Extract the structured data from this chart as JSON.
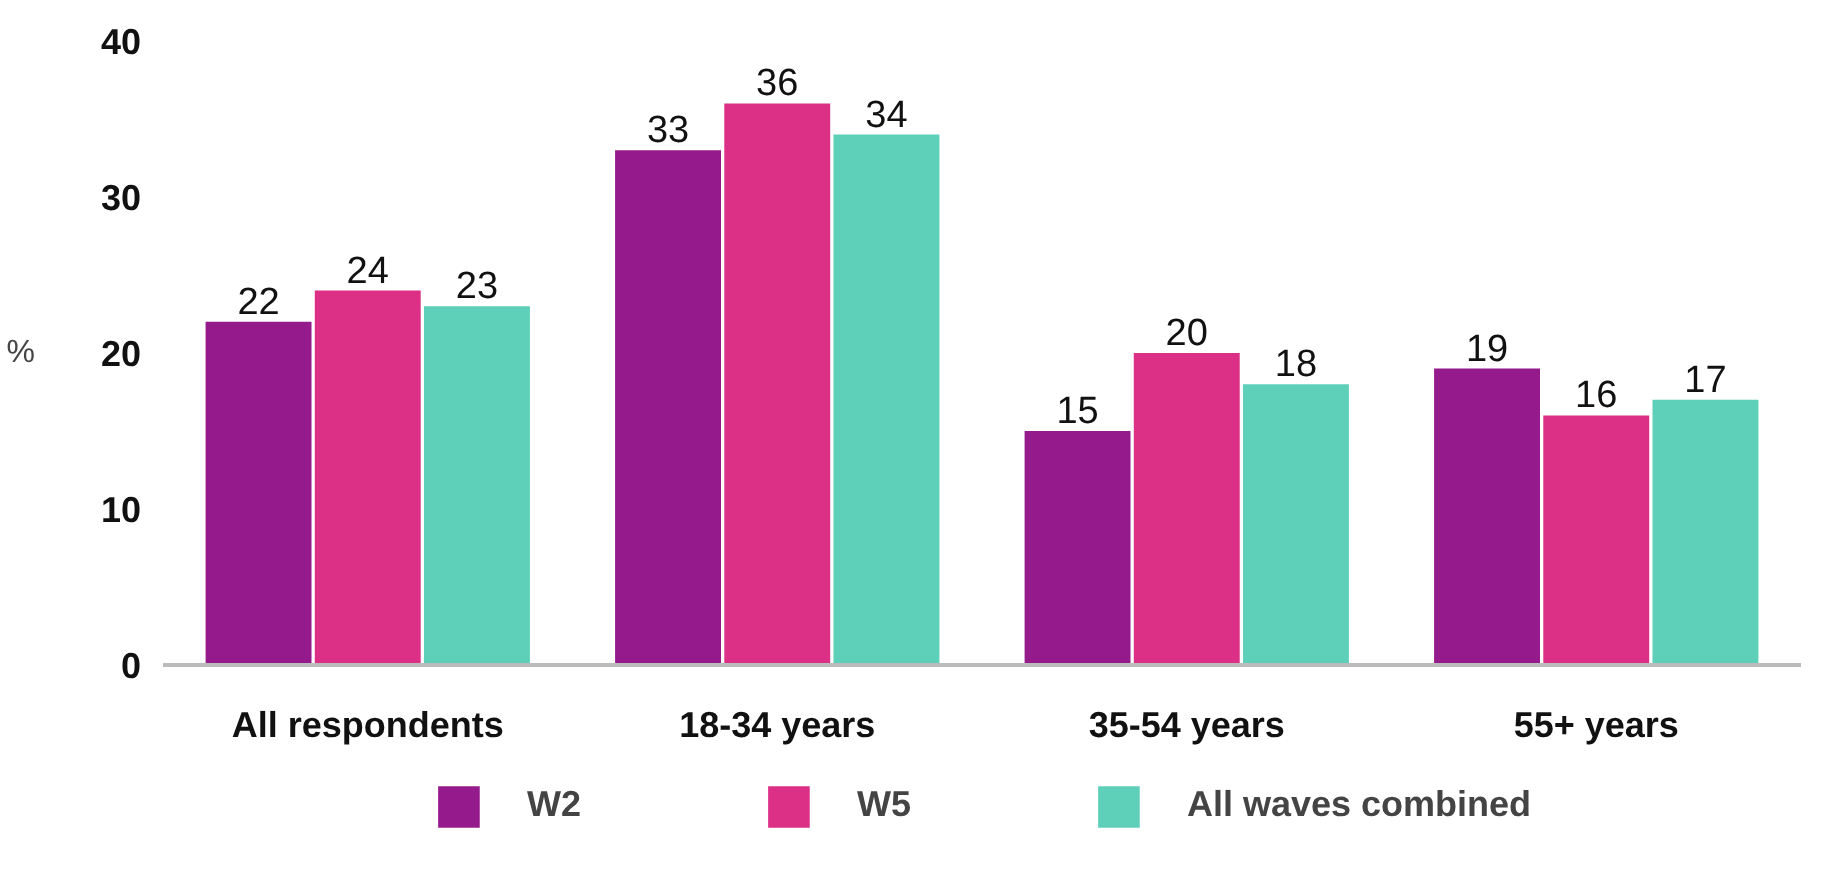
{
  "chart_data": {
    "type": "bar",
    "ylabel": "%",
    "categories": [
      "All respondents",
      "18-34 years",
      "35-54 years",
      "55+ years"
    ],
    "series": [
      {
        "name": "W2",
        "color": "#951b8c",
        "values": [
          22,
          33,
          15,
          19
        ]
      },
      {
        "name": "W5",
        "color": "#dc2f86",
        "values": [
          24,
          36,
          20,
          16
        ]
      },
      {
        "name": "All waves combined",
        "color": "#5ecfb9",
        "values": [
          23,
          34,
          18,
          17
        ]
      }
    ],
    "ylim": [
      0,
      40
    ],
    "yticks": [
      0,
      10,
      20,
      30,
      40
    ],
    "grid": false,
    "legend": "bottom",
    "data_labels": true
  }
}
